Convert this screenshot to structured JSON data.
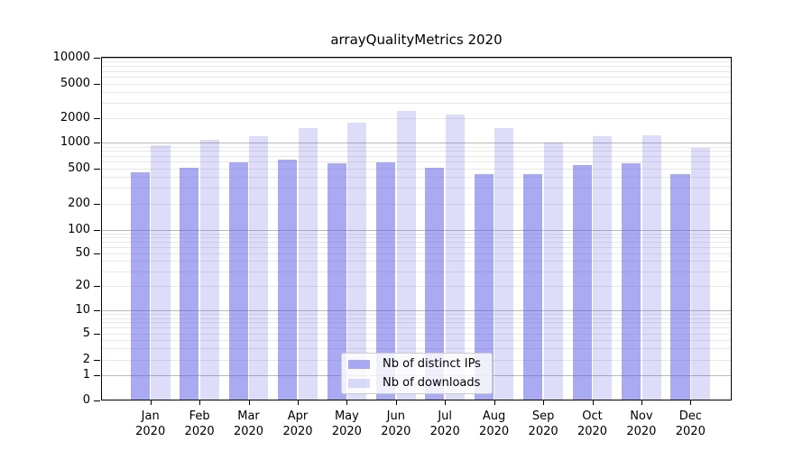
{
  "title": "arrayQualityMetrics 2020",
  "chart_data": {
    "type": "bar",
    "title": "arrayQualityMetrics 2020",
    "categories": [
      "Jan 2020",
      "Feb 2020",
      "Mar 2020",
      "Apr 2020",
      "May 2020",
      "Jun 2020",
      "Jul 2020",
      "Aug 2020",
      "Sep 2020",
      "Oct 2020",
      "Nov 2020",
      "Dec 2020"
    ],
    "series": [
      {
        "name": "Nb of distinct IPs",
        "color": "rgba(85,85,230,0.5)",
        "values": [
          450,
          505,
          590,
          640,
          580,
          590,
          505,
          430,
          435,
          550,
          580,
          435
        ]
      },
      {
        "name": "Nb of downloads",
        "color": "rgba(85,85,230,0.2)",
        "values": [
          940,
          1100,
          1200,
          1500,
          1780,
          2400,
          2200,
          1500,
          1020,
          1200,
          1250,
          860
        ]
      }
    ],
    "yticks": [
      10000,
      5000,
      2000,
      1000,
      500,
      200,
      100,
      50,
      20,
      10,
      5,
      2,
      1,
      0
    ],
    "ylim": [
      0,
      10000
    ],
    "yscale": "log-like with zero",
    "xlabel": "",
    "ylabel": "",
    "grid": "horizontal, major at powers of 10 and minor at 2-9 multiples",
    "legend_position": "inside bottom-center"
  },
  "colors": {
    "background": "#ffffff",
    "bar_base": "#5555e6",
    "major_grid": "#b9b9b9",
    "minor_grid": "#e8e8e8",
    "axis": "#000000",
    "legend_border": "#cccccc"
  }
}
